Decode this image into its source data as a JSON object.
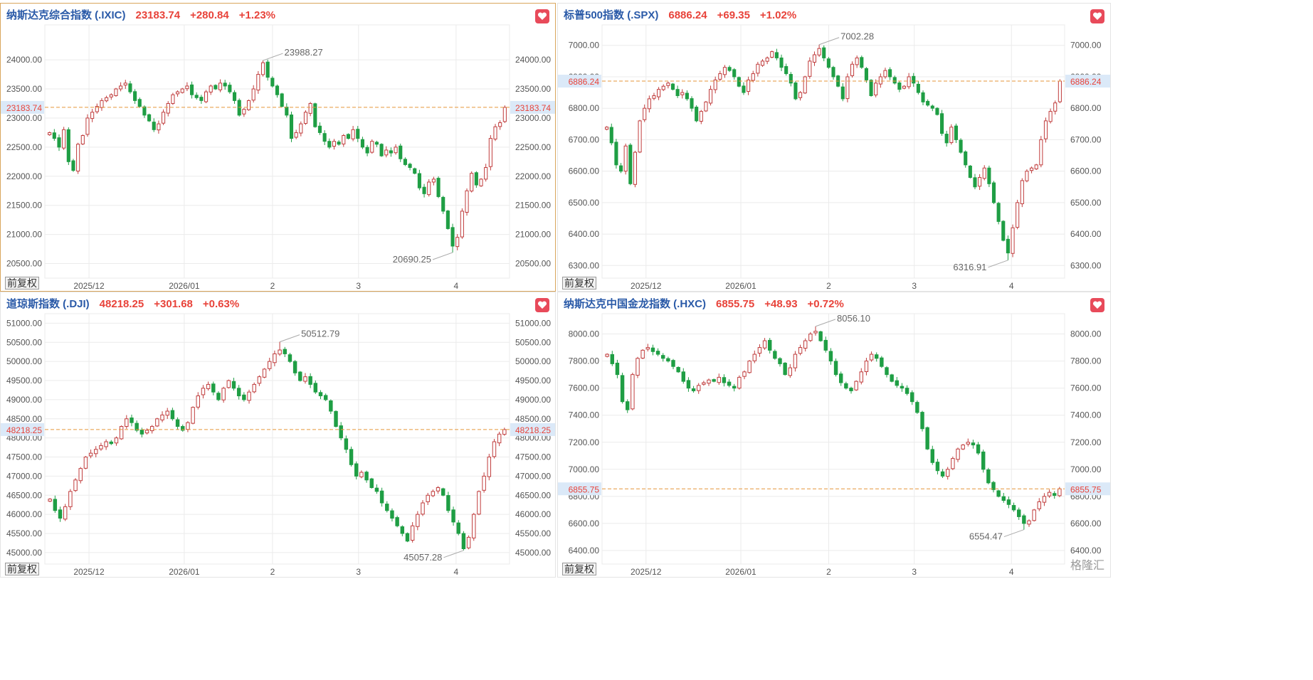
{
  "panels": [
    {
      "id": "ixic",
      "name": "纳斯达克综合指数 (.IXIC)",
      "price": "23183.74",
      "change": "+280.84",
      "pct": "+1.23%",
      "adjust_label": "前复权",
      "active": true,
      "chart_data": {
        "type": "candlestick",
        "x_ticks": [
          "2025/12",
          "2026/01",
          "2",
          "3",
          "4"
        ],
        "y_ticks": [
          "24000.00",
          "23500.00",
          "23000.00",
          "22500.00",
          "22000.00",
          "21500.00",
          "21000.00",
          "20500.00"
        ],
        "ylim": [
          20250,
          24600
        ],
        "current": 23183.74,
        "current_label": "23183.74",
        "high": 23988.27,
        "high_label": "23988.27",
        "low": 20690.25,
        "low_label": "20690.25",
        "closes": [
          22750,
          22650,
          22500,
          22800,
          22250,
          22100,
          22550,
          22700,
          23000,
          23100,
          23200,
          23300,
          23350,
          23400,
          23500,
          23550,
          23600,
          23450,
          23300,
          23200,
          23050,
          22950,
          22800,
          22900,
          23100,
          23250,
          23400,
          23450,
          23500,
          23550,
          23400,
          23350,
          23300,
          23450,
          23550,
          23500,
          23600,
          23550,
          23450,
          23300,
          23050,
          23150,
          23300,
          23500,
          23750,
          23950,
          23700,
          23550,
          23400,
          23200,
          23050,
          22650,
          22750,
          22900,
          23100,
          23250,
          22850,
          22750,
          22600,
          22500,
          22600,
          22550,
          22700,
          22650,
          22800,
          22650,
          22500,
          22400,
          22600,
          22550,
          22350,
          22450,
          22400,
          22500,
          22300,
          22200,
          22150,
          22050,
          21800,
          21700,
          21900,
          21950,
          21650,
          21400,
          21100,
          20800,
          20950,
          21400,
          21750,
          22050,
          21850,
          21950,
          22150,
          22650,
          22850,
          22920,
          23183.74
        ]
      }
    },
    {
      "id": "spx",
      "name": "标普500指数 (.SPX)",
      "price": "6886.24",
      "change": "+69.35",
      "pct": "+1.02%",
      "adjust_label": "前复权",
      "active": false,
      "chart_data": {
        "type": "candlestick",
        "x_ticks": [
          "2025/12",
          "2026/01",
          "2",
          "3",
          "4"
        ],
        "y_ticks": [
          "7000.00",
          "6900.00",
          "6800.00",
          "6700.00",
          "6600.00",
          "6500.00",
          "6400.00",
          "6300.00"
        ],
        "ylim": [
          6260,
          7065
        ],
        "current": 6886.24,
        "current_label": "6886.24",
        "high": 7002.28,
        "high_label": "7002.28",
        "low": 6316.91,
        "low_label": "6316.91",
        "closes": [
          6740,
          6690,
          6620,
          6600,
          6680,
          6560,
          6660,
          6760,
          6800,
          6830,
          6840,
          6860,
          6870,
          6880,
          6860,
          6840,
          6850,
          6830,
          6800,
          6760,
          6790,
          6820,
          6860,
          6890,
          6910,
          6930,
          6920,
          6900,
          6870,
          6850,
          6890,
          6910,
          6940,
          6950,
          6960,
          6980,
          6960,
          6930,
          6910,
          6880,
          6830,
          6850,
          6900,
          6950,
          6970,
          6990,
          6960,
          6930,
          6900,
          6870,
          6830,
          6900,
          6940,
          6960,
          6930,
          6890,
          6840,
          6880,
          6900,
          6920,
          6900,
          6880,
          6860,
          6870,
          6900,
          6880,
          6850,
          6820,
          6810,
          6800,
          6780,
          6720,
          6690,
          6740,
          6700,
          6660,
          6620,
          6580,
          6550,
          6580,
          6610,
          6560,
          6500,
          6440,
          6380,
          6340,
          6420,
          6500,
          6570,
          6600,
          6610,
          6620,
          6700,
          6760,
          6790,
          6817,
          6886.24
        ]
      }
    },
    {
      "id": "dji",
      "name": "道琼斯指数 (.DJI)",
      "price": "48218.25",
      "change": "+301.68",
      "pct": "+0.63%",
      "adjust_label": "前复权",
      "active": false,
      "chart_data": {
        "type": "candlestick",
        "x_ticks": [
          "2025/12",
          "2026/01",
          "2",
          "3",
          "4"
        ],
        "y_ticks": [
          "51000.00",
          "50500.00",
          "50000.00",
          "49500.00",
          "49000.00",
          "48500.00",
          "48000.00",
          "47500.00",
          "47000.00",
          "46500.00",
          "46000.00",
          "45500.00",
          "45000.00"
        ],
        "ylim": [
          44700,
          51250
        ],
        "current": 48218.25,
        "current_label": "48218.25",
        "high": 50512.79,
        "high_label": "50512.79",
        "low": 45057.28,
        "low_label": "45057.28",
        "closes": [
          46400,
          46100,
          45900,
          46200,
          46600,
          46900,
          47200,
          47500,
          47600,
          47700,
          47800,
          47900,
          47850,
          48000,
          48300,
          48500,
          48400,
          48200,
          48100,
          48200,
          48300,
          48500,
          48600,
          48700,
          48500,
          48300,
          48200,
          48400,
          48800,
          49100,
          49300,
          49400,
          49200,
          49000,
          49300,
          49500,
          49300,
          49100,
          49000,
          49200,
          49400,
          49600,
          49800,
          50000,
          50200,
          50300,
          50200,
          50000,
          49700,
          49500,
          49600,
          49400,
          49200,
          49100,
          49000,
          48700,
          48300,
          48000,
          47700,
          47300,
          47000,
          47100,
          46900,
          46700,
          46600,
          46300,
          46100,
          45900,
          45700,
          45500,
          45300,
          45700,
          46000,
          46300,
          46500,
          46600,
          46700,
          46500,
          46100,
          45800,
          45500,
          45100,
          45400,
          46000,
          46600,
          47000,
          47500,
          47900,
          48100,
          48218.25
        ]
      }
    },
    {
      "id": "hxc",
      "name": "纳斯达克中国金龙指数 (.HXC)",
      "price": "6855.75",
      "change": "+48.93",
      "pct": "+0.72%",
      "adjust_label": "前复权",
      "active": false,
      "chart_data": {
        "type": "candlestick",
        "x_ticks": [
          "2025/12",
          "2026/01",
          "2",
          "3",
          "4"
        ],
        "y_ticks": [
          "8000.00",
          "7800.00",
          "7600.00",
          "7400.00",
          "7200.00",
          "7000.00",
          "6800.00",
          "6600.00",
          "6400.00"
        ],
        "ylim": [
          6300,
          8150
        ],
        "current": 6855.75,
        "current_label": "6855.75",
        "high": 8056.1,
        "high_label": "8056.10",
        "low": 6554.47,
        "low_label": "6554.47",
        "closes": [
          7850,
          7780,
          7700,
          7500,
          7440,
          7700,
          7820,
          7880,
          7900,
          7870,
          7850,
          7820,
          7800,
          7760,
          7720,
          7650,
          7600,
          7580,
          7620,
          7640,
          7660,
          7650,
          7680,
          7640,
          7620,
          7600,
          7680,
          7720,
          7800,
          7850,
          7900,
          7950,
          7880,
          7820,
          7780,
          7700,
          7750,
          7850,
          7900,
          7950,
          8000,
          8020,
          7950,
          7880,
          7800,
          7700,
          7640,
          7600,
          7580,
          7650,
          7720,
          7800,
          7850,
          7820,
          7760,
          7700,
          7650,
          7620,
          7600,
          7560,
          7500,
          7420,
          7300,
          7150,
          7050,
          6990,
          6950,
          7000,
          7080,
          7150,
          7180,
          7200,
          7180,
          7120,
          7000,
          6900,
          6850,
          6800,
          6770,
          6740,
          6700,
          6650,
          6600,
          6620,
          6700,
          6760,
          6800,
          6830,
          6807,
          6855.75
        ]
      }
    }
  ],
  "watermark": "格隆汇",
  "colors": {
    "up": "#c03c3c",
    "down": "#1f9e44",
    "ref": "#e5963a",
    "grid": "#ebebeb",
    "axis": "#555555",
    "tag_bg": "#dbe9f8"
  }
}
